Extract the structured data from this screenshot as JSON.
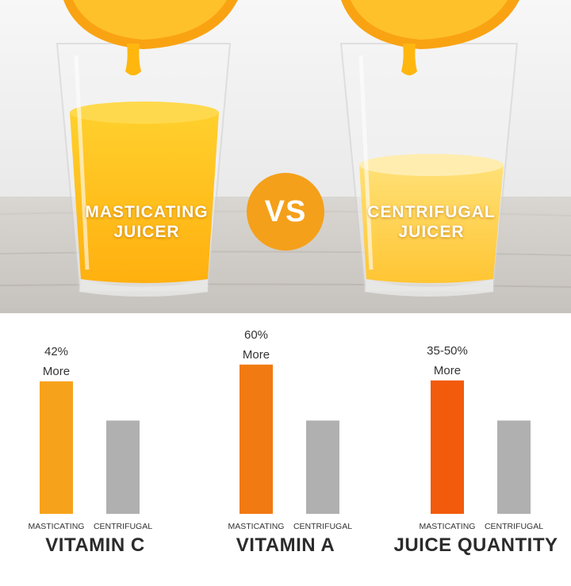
{
  "hero": {
    "left_label_line1": "MASTICATING",
    "left_label_line2": "JUICER",
    "vs_label": "VS",
    "right_label_line1": "CENTRIFUGAL",
    "right_label_line2": "JUICER"
  },
  "colors": {
    "juice": "#ffc21c",
    "juice_light": "#ffd64a",
    "orange_peel": "#f9a313",
    "vs_badge": "#f4a01a",
    "centrifugal_bar": "#b0b0b0",
    "title_text": "#2b2b2b"
  },
  "chart_data": [
    {
      "type": "bar",
      "title": "VITAMIN C",
      "categories": [
        "MASTICATING",
        "CENTRIFUGAL"
      ],
      "values": [
        1.42,
        1.0
      ],
      "annotation": [
        "42%",
        "More"
      ],
      "bar_colors": [
        "#f7a21b",
        "#b0b0b0"
      ],
      "ylim": [
        0,
        1.7
      ]
    },
    {
      "type": "bar",
      "title": "VITAMIN A",
      "categories": [
        "MASTICATING",
        "CENTRIFUGAL"
      ],
      "values": [
        1.6,
        1.0
      ],
      "annotation": [
        "60%",
        "More"
      ],
      "bar_colors": [
        "#f27a12",
        "#b0b0b0"
      ],
      "ylim": [
        0,
        1.7
      ]
    },
    {
      "type": "bar",
      "title": "JUICE QUANTITY",
      "categories": [
        "MASTICATING",
        "CENTRIFUGAL"
      ],
      "values": [
        1.43,
        1.0
      ],
      "annotation": [
        "35-50%",
        "More"
      ],
      "bar_colors": [
        "#f25a0c",
        "#b0b0b0"
      ],
      "ylim": [
        0,
        1.7
      ]
    }
  ]
}
